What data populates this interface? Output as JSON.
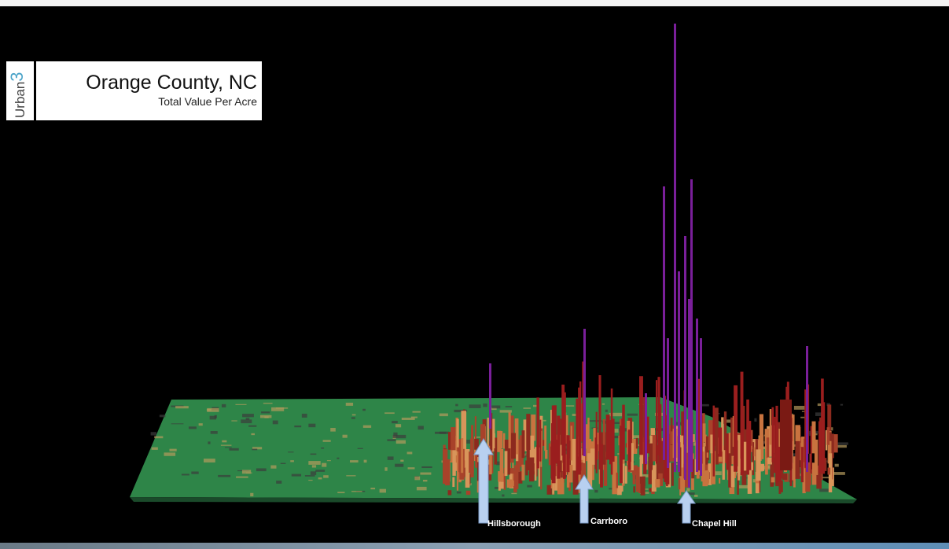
{
  "logo": {
    "text": "Urban",
    "mark": "3"
  },
  "header": {
    "title": "Orange County, NC",
    "subtitle": "Total Value Per Acre"
  },
  "labels": [
    "Hillsborough",
    "Carrboro",
    "Chapel Hill"
  ]
}
